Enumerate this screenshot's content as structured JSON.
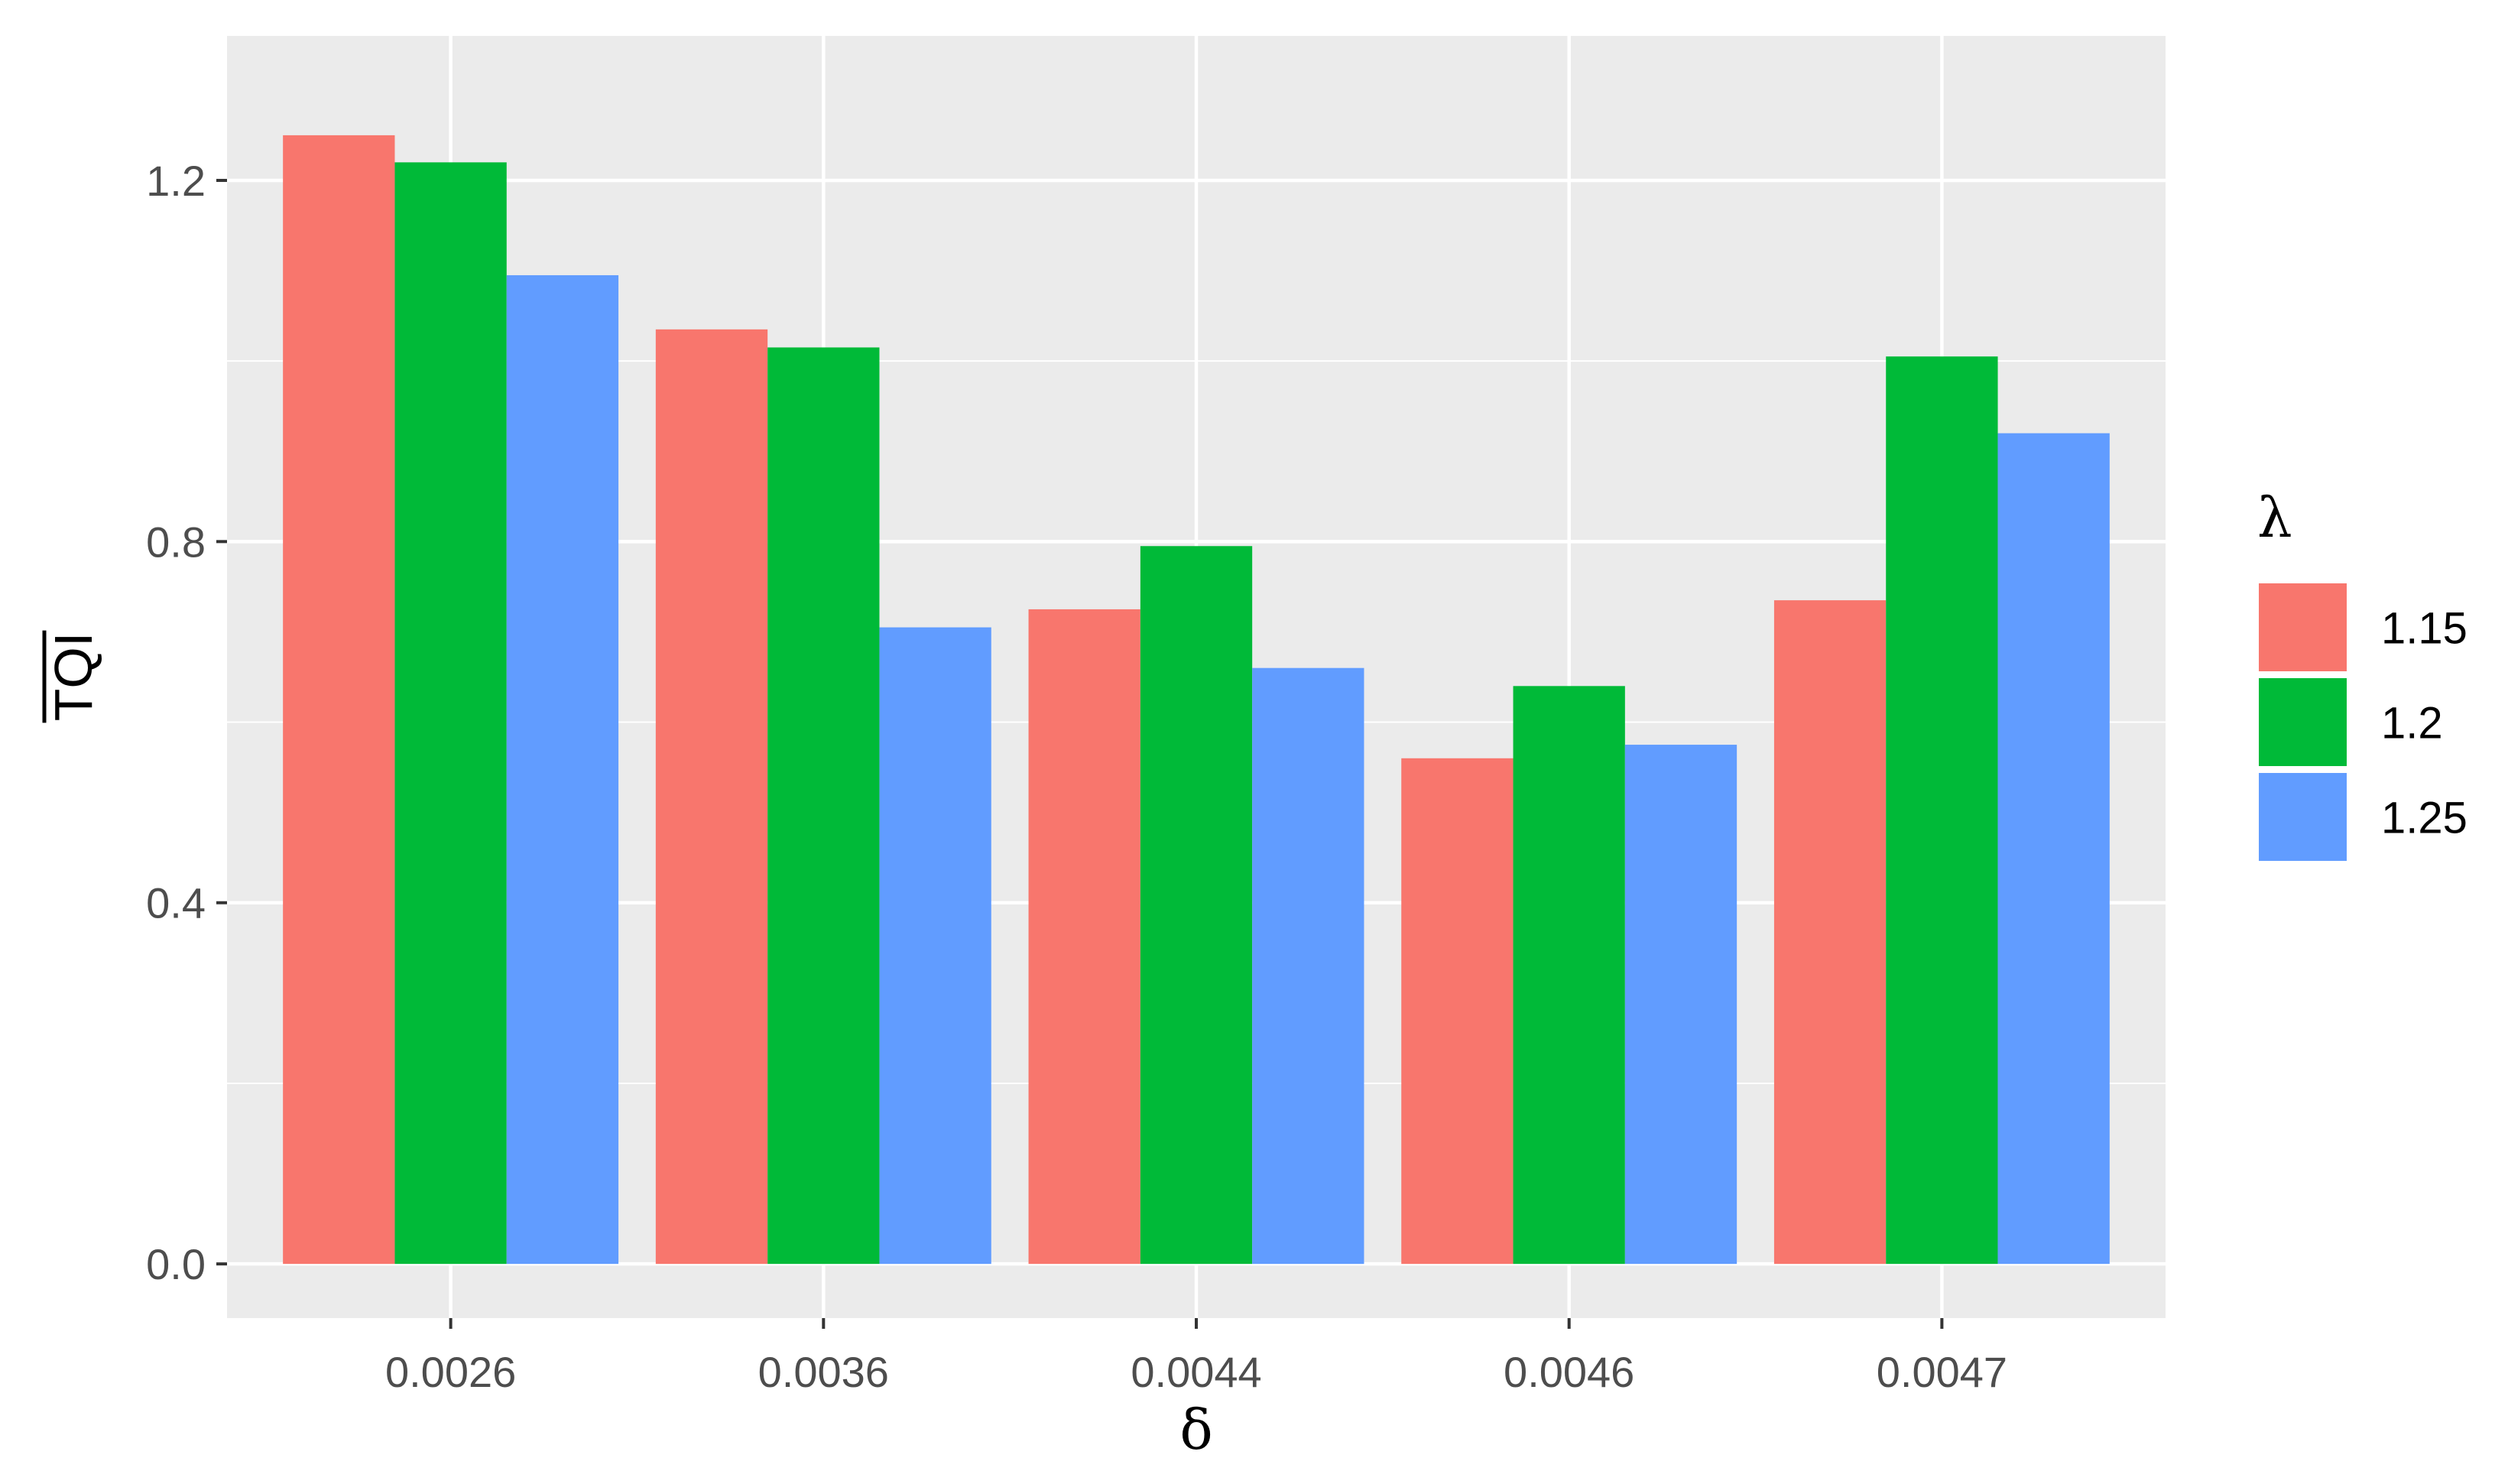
{
  "chart_data": {
    "type": "bar",
    "title": "",
    "xlabel": "δ",
    "ylabel": "TQI",
    "ylabel_overline": true,
    "categories": [
      "0.0026",
      "0.0036",
      "0.0044",
      "0.0046",
      "0.0047"
    ],
    "series": [
      {
        "name": "1.15",
        "color": "#F8766D",
        "values": [
          1.25,
          1.035,
          0.725,
          0.56,
          0.735
        ]
      },
      {
        "name": "1.2",
        "color": "#00BA38",
        "values": [
          1.22,
          1.015,
          0.795,
          0.64,
          1.005
        ]
      },
      {
        "name": "1.25",
        "color": "#619CFF",
        "values": [
          1.095,
          0.705,
          0.66,
          0.575,
          0.92
        ]
      }
    ],
    "ylim": [
      -0.06,
      1.36
    ],
    "yticks": [
      0.0,
      0.4,
      0.8,
      1.2
    ],
    "ytick_labels": [
      "0.0",
      "0.4",
      "0.8",
      "1.2"
    ],
    "grid": true,
    "legend": {
      "title": "λ",
      "position": "right"
    },
    "panel_background": "#EBEBEB"
  }
}
